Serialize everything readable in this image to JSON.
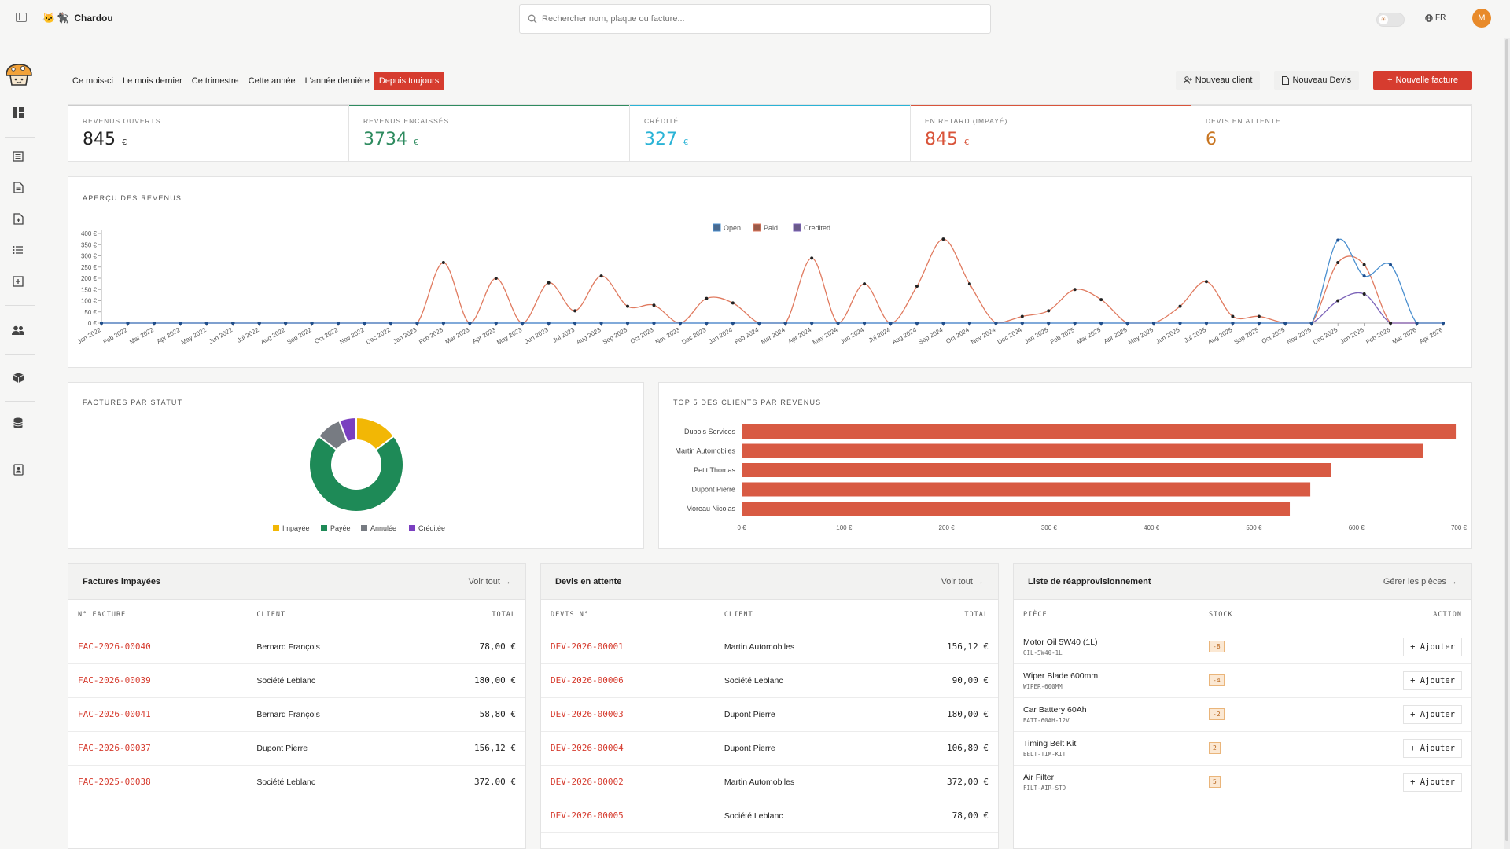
{
  "app": {
    "name": "Chardou",
    "brand_icons": "🐱🐈‍⬛"
  },
  "search": {
    "placeholder": "Rechercher nom, plaque ou facture..."
  },
  "header": {
    "language": "FR",
    "avatar_initial": "M"
  },
  "periods": [
    "Ce mois-ci",
    "Le mois dernier",
    "Ce trimestre",
    "Cette année",
    "L'année dernière",
    "Depuis toujours"
  ],
  "active_period": 5,
  "actions": {
    "new_client": "Nouveau client",
    "new_quote": "Nouveau Devis",
    "new_invoice": "Nouvelle facture"
  },
  "kpis": [
    {
      "label": "REVENUS OUVERTS",
      "value": "845",
      "currency": "€",
      "color": "#222222",
      "accent": "#cccccc"
    },
    {
      "label": "REVENUS ENCAISSÉS",
      "value": "3734",
      "currency": "€",
      "color": "#2e8b5f",
      "accent": "#2e8b5f"
    },
    {
      "label": "CRÉDITÉ",
      "value": "327",
      "currency": "€",
      "color": "#2ab3d6",
      "accent": "#2ab3d6"
    },
    {
      "label": "EN RETARD (IMPAYÉ)",
      "value": "845",
      "currency": "€",
      "color": "#d9543a",
      "accent": "#d9543a"
    },
    {
      "label": "DEVIS EN ATTENTE",
      "value": "6",
      "currency": "",
      "color": "#c8741f",
      "accent": "#dddddd"
    }
  ],
  "revenue_card": {
    "title": "APERÇU DES REVENUS"
  },
  "status_card": {
    "title": "FACTURES PAR STATUT"
  },
  "clients_card": {
    "title": "TOP 5 DES CLIENTS PAR REVENUS"
  },
  "chart_data": [
    {
      "type": "line",
      "title": "APERÇU DES REVENUS",
      "x": [
        "Jan 2022",
        "Feb 2022",
        "Mar 2022",
        "Apr 2022",
        "May 2022",
        "Jun 2022",
        "Jul 2022",
        "Aug 2022",
        "Sep 2022",
        "Oct 2022",
        "Nov 2022",
        "Dec 2022",
        "Jan 2023",
        "Feb 2023",
        "Mar 2023",
        "Apr 2023",
        "May 2023",
        "Jun 2023",
        "Jul 2023",
        "Aug 2023",
        "Sep 2023",
        "Oct 2023",
        "Nov 2023",
        "Dec 2023",
        "Jan 2024",
        "Feb 2024",
        "Mar 2024",
        "Apr 2024",
        "May 2024",
        "Jun 2024",
        "Jul 2024",
        "Aug 2024",
        "Sep 2024",
        "Oct 2024",
        "Nov 2024",
        "Dec 2024",
        "Jan 2025",
        "Feb 2025",
        "Mar 2025",
        "Apr 2025",
        "May 2025",
        "Jun 2025",
        "Jul 2025",
        "Aug 2025",
        "Sep 2025",
        "Oct 2025",
        "Nov 2025",
        "Dec 2025",
        "Jan 2026",
        "Feb 2026",
        "Mar 2026",
        "Apr 2026"
      ],
      "yticks": [
        "0 €",
        "50 €",
        "100 €",
        "150 €",
        "200 €",
        "250 €",
        "300 €",
        "350 €",
        "400 €"
      ],
      "ylim": [
        0,
        400
      ],
      "legend_position": "top-center",
      "series": [
        {
          "name": "Open",
          "color": "#4a8fcf",
          "values": [
            0,
            0,
            0,
            0,
            0,
            0,
            0,
            0,
            0,
            0,
            0,
            0,
            0,
            0,
            0,
            0,
            0,
            0,
            0,
            0,
            0,
            0,
            0,
            0,
            0,
            0,
            0,
            0,
            0,
            0,
            0,
            0,
            0,
            0,
            0,
            0,
            0,
            0,
            0,
            0,
            0,
            0,
            0,
            0,
            0,
            0,
            0,
            370,
            210,
            260,
            0,
            0
          ]
        },
        {
          "name": "Paid",
          "color": "#e07a5f",
          "values": [
            0,
            0,
            0,
            0,
            0,
            0,
            0,
            0,
            0,
            0,
            0,
            0,
            0,
            270,
            0,
            200,
            0,
            180,
            55,
            210,
            75,
            80,
            0,
            110,
            90,
            0,
            0,
            290,
            0,
            175,
            0,
            165,
            375,
            175,
            0,
            30,
            55,
            150,
            105,
            0,
            0,
            75,
            185,
            30,
            30,
            0,
            0,
            270,
            260,
            0,
            0,
            0
          ]
        },
        {
          "name": "Credited",
          "color": "#7b62b8",
          "values": [
            0,
            0,
            0,
            0,
            0,
            0,
            0,
            0,
            0,
            0,
            0,
            0,
            0,
            0,
            0,
            0,
            0,
            0,
            0,
            0,
            0,
            0,
            0,
            0,
            0,
            0,
            0,
            0,
            0,
            0,
            0,
            0,
            0,
            0,
            0,
            0,
            0,
            0,
            0,
            0,
            0,
            0,
            0,
            0,
            0,
            0,
            0,
            100,
            130,
            0,
            0,
            0
          ]
        }
      ]
    },
    {
      "type": "pie",
      "title": "FACTURES PAR STATUT",
      "categories": [
        "Impayée",
        "Payée",
        "Annulée",
        "Créditée"
      ],
      "values": [
        5,
        24,
        3,
        2
      ],
      "colors": [
        "#f2b705",
        "#1e8a57",
        "#777b82",
        "#7a3fc0"
      ],
      "legend_position": "bottom"
    },
    {
      "type": "bar",
      "title": "TOP 5 DES CLIENTS PAR REVENUS",
      "categories": [
        "Dubois Services",
        "Martin Automobiles",
        "Petit Thomas",
        "Dupont Pierre",
        "Moreau Nicolas"
      ],
      "values": [
        697,
        665,
        575,
        555,
        535
      ],
      "xticks": [
        "0 €",
        "100 €",
        "200 €",
        "300 €",
        "400 €",
        "500 €",
        "600 €",
        "700 €"
      ],
      "xlim": [
        0,
        700
      ],
      "color": "#d85a43"
    }
  ],
  "unpaid": {
    "title": "Factures impayées",
    "link": "Voir tout →",
    "headers": [
      "N° FACTURE",
      "CLIENT",
      "TOTAL"
    ],
    "rows": [
      [
        "FAC-2026-00040",
        "Bernard François",
        "78,00 €"
      ],
      [
        "FAC-2026-00039",
        "Société Leblanc",
        "180,00 €"
      ],
      [
        "FAC-2026-00041",
        "Bernard François",
        "58,80 €"
      ],
      [
        "FAC-2026-00037",
        "Dupont Pierre",
        "156,12 €"
      ],
      [
        "FAC-2025-00038",
        "Société Leblanc",
        "372,00 €"
      ]
    ]
  },
  "quotes": {
    "title": "Devis en attente",
    "link": "Voir tout →",
    "headers": [
      "DEVIS N°",
      "CLIENT",
      "TOTAL"
    ],
    "rows": [
      [
        "DEV-2026-00001",
        "Martin Automobiles",
        "156,12 €"
      ],
      [
        "DEV-2026-00006",
        "Société Leblanc",
        "90,00 €"
      ],
      [
        "DEV-2026-00003",
        "Dupont Pierre",
        "180,00 €"
      ],
      [
        "DEV-2026-00004",
        "Dupont Pierre",
        "106,80 €"
      ],
      [
        "DEV-2026-00002",
        "Martin Automobiles",
        "372,00 €"
      ],
      [
        "DEV-2026-00005",
        "Société Leblanc",
        "78,00 €"
      ]
    ]
  },
  "restock": {
    "title": "Liste de réapprovisionnement",
    "link": "Gérer les pièces →",
    "headers": [
      "PIÈCE",
      "STOCK",
      "ACTION"
    ],
    "add_label": "+ Ajouter",
    "rows": [
      {
        "name": "Motor Oil 5W40 (1L)",
        "code": "OIL-5W40-1L",
        "stock": "-8"
      },
      {
        "name": "Wiper Blade 600mm",
        "code": "WIPER-600MM",
        "stock": "-4"
      },
      {
        "name": "Car Battery 60Ah",
        "code": "BATT-60AH-12V",
        "stock": "-2"
      },
      {
        "name": "Timing Belt Kit",
        "code": "BELT-TIM-KIT",
        "stock": "2"
      },
      {
        "name": "Air Filter",
        "code": "FILT-AIR-STD",
        "stock": "5"
      }
    ]
  }
}
